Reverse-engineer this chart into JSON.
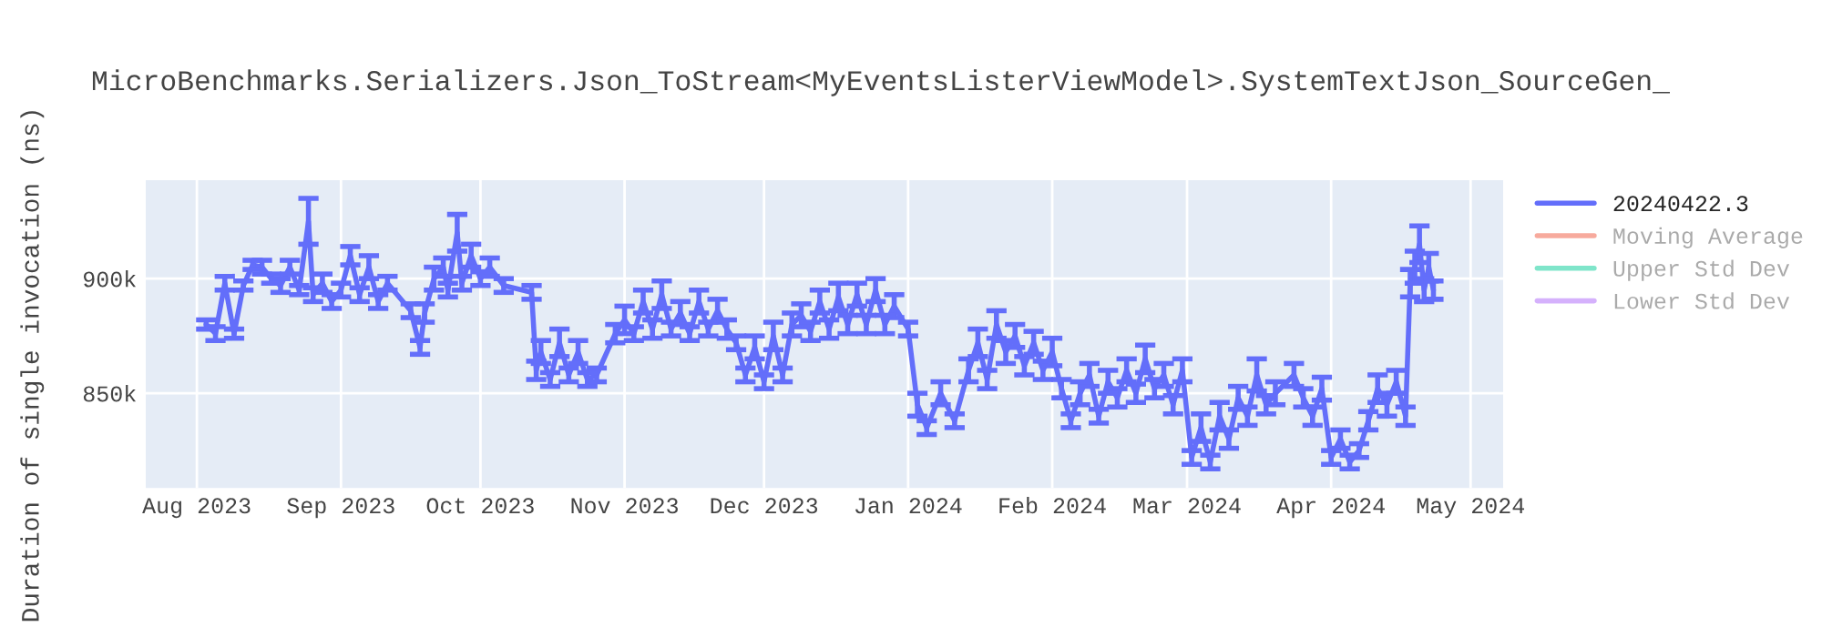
{
  "chart_data": {
    "type": "line",
    "title": "MicroBenchmarks.Serializers.Json_ToStream<MyEventsListerViewModel>.SystemTextJson_SourceGen_",
    "ylabel": "Duration of single invocation (ns)",
    "x": [
      "2023-08-03",
      "2023-08-05",
      "2023-08-07",
      "2023-08-09",
      "2023-08-11",
      "2023-08-13",
      "2023-08-15",
      "2023-08-17",
      "2023-08-19",
      "2023-08-21",
      "2023-08-23",
      "2023-08-25",
      "2023-08-26",
      "2023-08-28",
      "2023-08-30",
      "2023-09-01",
      "2023-09-03",
      "2023-09-05",
      "2023-09-07",
      "2023-09-09",
      "2023-09-11",
      "2023-09-16",
      "2023-09-18",
      "2023-09-19",
      "2023-09-21",
      "2023-09-23",
      "2023-09-24",
      "2023-09-26",
      "2023-09-27",
      "2023-09-29",
      "2023-10-01",
      "2023-10-03",
      "2023-10-06",
      "2023-10-12",
      "2023-10-13",
      "2023-10-14",
      "2023-10-16",
      "2023-10-18",
      "2023-10-20",
      "2023-10-22",
      "2023-10-24",
      "2023-10-26",
      "2023-10-30",
      "2023-11-01",
      "2023-11-03",
      "2023-11-05",
      "2023-11-07",
      "2023-11-09",
      "2023-11-11",
      "2023-11-13",
      "2023-11-15",
      "2023-11-17",
      "2023-11-19",
      "2023-11-21",
      "2023-11-23",
      "2023-11-25",
      "2023-11-27",
      "2023-11-29",
      "2023-12-01",
      "2023-12-03",
      "2023-12-05",
      "2023-12-07",
      "2023-12-09",
      "2023-12-11",
      "2023-12-13",
      "2023-12-15",
      "2023-12-17",
      "2023-12-19",
      "2023-12-21",
      "2023-12-23",
      "2023-12-25",
      "2023-12-27",
      "2023-12-29",
      "2024-01-01",
      "2024-01-03",
      "2024-01-05",
      "2024-01-08",
      "2024-01-11",
      "2024-01-14",
      "2024-01-16",
      "2024-01-18",
      "2024-01-20",
      "2024-01-22",
      "2024-01-24",
      "2024-01-26",
      "2024-01-28",
      "2024-01-30",
      "2024-02-01",
      "2024-02-03",
      "2024-02-05",
      "2024-02-07",
      "2024-02-09",
      "2024-02-11",
      "2024-02-13",
      "2024-02-15",
      "2024-02-17",
      "2024-02-19",
      "2024-02-21",
      "2024-02-23",
      "2024-02-25",
      "2024-02-27",
      "2024-02-29",
      "2024-03-02",
      "2024-03-04",
      "2024-03-06",
      "2024-03-08",
      "2024-03-10",
      "2024-03-12",
      "2024-03-14",
      "2024-03-16",
      "2024-03-18",
      "2024-03-20",
      "2024-03-24",
      "2024-03-26",
      "2024-03-28",
      "2024-03-30",
      "2024-04-01",
      "2024-04-03",
      "2024-04-05",
      "2024-04-07",
      "2024-04-09",
      "2024-04-11",
      "2024-04-13",
      "2024-04-15",
      "2024-04-17",
      "2024-04-18",
      "2024-04-19",
      "2024-04-20",
      "2024-04-21",
      "2024-04-22",
      "2024-04-23"
    ],
    "series": [
      {
        "name": "20240422.3",
        "color": "#636efa",
        "values": [
          880000,
          876000,
          898000,
          876000,
          897000,
          906000,
          905000,
          900000,
          897000,
          905000,
          895000,
          925000,
          893000,
          898000,
          890000,
          895000,
          910000,
          893000,
          905000,
          890000,
          898000,
          886000,
          870000,
          885000,
          900000,
          905000,
          895000,
          920000,
          898000,
          910000,
          900000,
          905000,
          897000,
          894000,
          860000,
          868000,
          856000,
          872000,
          858000,
          868000,
          856000,
          858000,
          876000,
          882000,
          876000,
          890000,
          878000,
          893000,
          878000,
          885000,
          876000,
          890000,
          878000,
          886000,
          878000,
          872000,
          858000,
          870000,
          855000,
          875000,
          858000,
          880000,
          884000,
          877000,
          890000,
          878000,
          892000,
          880000,
          893000,
          880000,
          895000,
          880000,
          888000,
          878000,
          845000,
          835000,
          850000,
          838000,
          860000,
          872000,
          856000,
          880000,
          868000,
          875000,
          862000,
          872000,
          860000,
          868000,
          852000,
          838000,
          850000,
          858000,
          840000,
          855000,
          848000,
          860000,
          850000,
          865000,
          852000,
          858000,
          845000,
          860000,
          822000,
          835000,
          820000,
          840000,
          830000,
          848000,
          840000,
          858000,
          845000,
          850000,
          858000,
          848000,
          840000,
          852000,
          822000,
          830000,
          820000,
          825000,
          838000,
          852000,
          845000,
          855000,
          840000,
          898000,
          905000,
          915000,
          895000,
          905000,
          895000
        ],
        "errors": [
          2000,
          3000,
          3000,
          2000,
          2000,
          2000,
          3000,
          2000,
          3000,
          3000,
          2000,
          10000,
          3000,
          4000,
          3000,
          3000,
          4000,
          3000,
          5000,
          3000,
          3000,
          3000,
          3000,
          4000,
          5000,
          4000,
          3000,
          8000,
          3000,
          5000,
          3000,
          4000,
          3000,
          3000,
          4000,
          5000,
          3000,
          6000,
          3000,
          5000,
          3000,
          3000,
          4000,
          6000,
          3000,
          5000,
          4000,
          6000,
          3000,
          5000,
          3000,
          5000,
          3000,
          5000,
          4000,
          3000,
          3000,
          5000,
          3000,
          6000,
          3000,
          5000,
          5000,
          4000,
          5000,
          4000,
          6000,
          4000,
          5000,
          4000,
          5000,
          4000,
          5000,
          3000,
          5000,
          3000,
          5000,
          3000,
          5000,
          6000,
          4000,
          6000,
          5000,
          5000,
          4000,
          5000,
          4000,
          6000,
          4000,
          3000,
          5000,
          5000,
          3000,
          5000,
          4000,
          5000,
          4000,
          6000,
          4000,
          5000,
          4000,
          5000,
          3000,
          6000,
          3000,
          6000,
          4000,
          5000,
          4000,
          7000,
          4000,
          5000,
          5000,
          4000,
          4000,
          5000,
          3000,
          4000,
          3000,
          3000,
          4000,
          6000,
          5000,
          5000,
          4000,
          6000,
          7000,
          8000,
          5000,
          6000,
          4000
        ]
      },
      {
        "name": "Moving Average",
        "color": "#ef553b",
        "values": [
          null,
          null,
          null,
          null,
          null,
          null,
          null,
          null,
          null,
          null,
          null,
          null,
          null,
          null,
          null,
          null,
          null,
          null,
          null,
          null,
          null,
          null,
          null,
          null,
          null,
          null,
          null,
          null,
          null,
          null,
          null,
          null,
          null,
          null,
          null,
          null,
          null,
          null,
          null,
          null,
          null,
          null,
          null,
          null,
          null,
          null,
          null,
          null,
          null,
          null,
          null,
          null,
          null,
          null,
          null,
          null,
          null,
          null,
          null,
          null,
          null,
          null,
          null,
          null,
          null,
          null,
          null,
          null,
          null,
          null,
          null,
          null,
          null,
          null,
          null,
          null,
          null,
          null,
          null,
          null,
          null,
          null,
          null,
          null,
          null,
          null,
          null,
          null,
          null,
          null,
          null,
          null,
          null,
          null,
          null,
          null,
          null,
          null,
          null,
          null,
          null,
          null,
          null,
          null,
          null,
          null,
          null,
          null,
          null,
          null,
          null,
          null,
          null,
          null,
          null,
          null,
          null,
          null,
          null,
          null,
          null,
          null,
          null,
          null,
          null,
          null,
          null,
          null,
          null,
          null,
          null
        ]
      },
      {
        "name": "Upper Std Dev",
        "color": "#00cc96",
        "values": [
          null,
          null,
          null,
          null,
          null,
          null,
          null,
          null,
          null,
          null,
          null,
          null,
          null,
          null,
          null,
          null,
          null,
          null,
          null,
          null,
          null,
          null,
          null,
          null,
          null,
          null,
          null,
          null,
          null,
          null,
          null,
          null,
          null,
          null,
          null,
          null,
          null,
          null,
          null,
          null,
          null,
          null,
          null,
          null,
          null,
          null,
          null,
          null,
          null,
          null,
          null,
          null,
          null,
          null,
          null,
          null,
          null,
          null,
          null,
          null,
          null,
          null,
          null,
          null,
          null,
          null,
          null,
          null,
          null,
          null,
          null,
          null,
          null,
          null,
          null,
          null,
          null,
          null,
          null,
          null,
          null,
          null,
          null,
          null,
          null,
          null,
          null,
          null,
          null,
          null,
          null,
          null,
          null,
          null,
          null,
          null,
          null,
          null,
          null,
          null,
          null,
          null,
          null,
          null,
          null,
          null,
          null,
          null,
          null,
          null,
          null,
          null,
          null,
          null,
          null,
          null,
          null,
          null,
          null,
          null,
          null,
          null,
          null,
          null,
          null,
          null,
          null,
          null,
          null,
          null,
          null
        ]
      },
      {
        "name": "Lower Std Dev",
        "color": "#ab63fa",
        "values": [
          null,
          null,
          null,
          null,
          null,
          null,
          null,
          null,
          null,
          null,
          null,
          null,
          null,
          null,
          null,
          null,
          null,
          null,
          null,
          null,
          null,
          null,
          null,
          null,
          null,
          null,
          null,
          null,
          null,
          null,
          null,
          null,
          null,
          null,
          null,
          null,
          null,
          null,
          null,
          null,
          null,
          null,
          null,
          null,
          null,
          null,
          null,
          null,
          null,
          null,
          null,
          null,
          null,
          null,
          null,
          null,
          null,
          null,
          null,
          null,
          null,
          null,
          null,
          null,
          null,
          null,
          null,
          null,
          null,
          null,
          null,
          null,
          null,
          null,
          null,
          null,
          null,
          null,
          null,
          null,
          null,
          null,
          null,
          null,
          null,
          null,
          null,
          null,
          null,
          null,
          null,
          null,
          null,
          null,
          null,
          null,
          null,
          null,
          null,
          null,
          null,
          null,
          null,
          null,
          null,
          null,
          null,
          null,
          null,
          null,
          null,
          null,
          null,
          null,
          null,
          null,
          null,
          null,
          null,
          null,
          null,
          null,
          null,
          null,
          null,
          null,
          null,
          null,
          null,
          null,
          null
        ]
      }
    ],
    "xlim": [
      "2023-07-21",
      "2024-05-08"
    ],
    "xticks": [
      {
        "value": "2023-08-01",
        "label": "Aug 2023"
      },
      {
        "value": "2023-09-01",
        "label": "Sep 2023"
      },
      {
        "value": "2023-10-01",
        "label": "Oct 2023"
      },
      {
        "value": "2023-11-01",
        "label": "Nov 2023"
      },
      {
        "value": "2023-12-01",
        "label": "Dec 2023"
      },
      {
        "value": "2024-01-01",
        "label": "Jan 2024"
      },
      {
        "value": "2024-02-01",
        "label": "Feb 2024"
      },
      {
        "value": "2024-03-01",
        "label": "Mar 2024"
      },
      {
        "value": "2024-04-01",
        "label": "Apr 2024"
      },
      {
        "value": "2024-05-01",
        "label": "May 2024"
      }
    ],
    "ylim": [
      808700,
      942900
    ],
    "yticks": [
      {
        "value": 850000,
        "label": "850k"
      },
      {
        "value": 900000,
        "label": "900k"
      }
    ],
    "grid": true,
    "legend": "right"
  }
}
